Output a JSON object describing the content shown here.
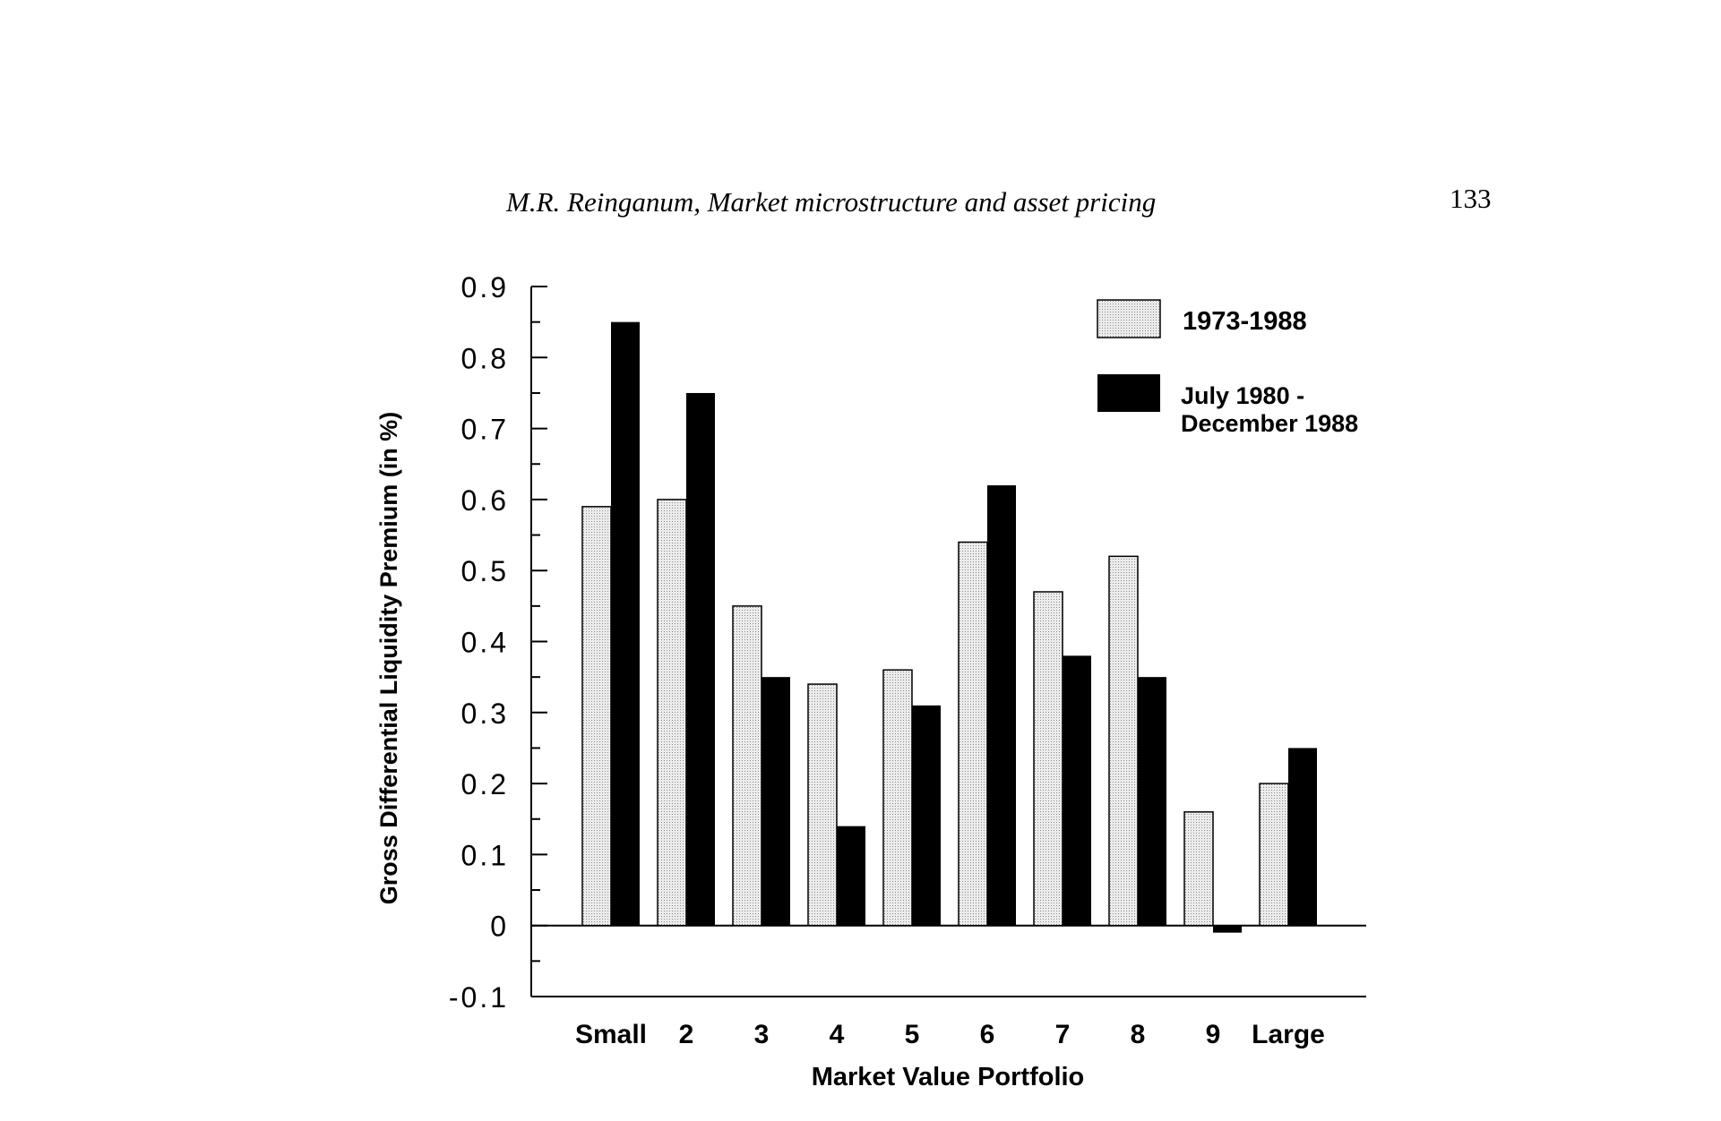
{
  "page": {
    "running_title": "M.R. Reinganum, Market microstructure and asset pricing",
    "page_number": "133"
  },
  "colors": {
    "series_1": "#d9d9d9",
    "series_2": "#000000"
  },
  "chart_data": {
    "type": "bar",
    "title": "",
    "xlabel": "Market Value Portfolio",
    "ylabel": "Gross Differential Liquidity Premium (in %)",
    "ylim": [
      -0.1,
      0.9
    ],
    "yticks": [
      "-0.1",
      "0",
      "0.1",
      "0.2",
      "0.3",
      "0.4",
      "0.5",
      "0.6",
      "0.7",
      "0.8",
      "0.9"
    ],
    "categories": [
      "Small",
      "2",
      "3",
      "4",
      "5",
      "6",
      "7",
      "8",
      "9",
      "Large"
    ],
    "legend_position": "top-right",
    "series": [
      {
        "name": "1973-1988",
        "values": [
          0.59,
          0.6,
          0.45,
          0.34,
          0.36,
          0.54,
          0.47,
          0.52,
          0.16,
          0.2
        ]
      },
      {
        "name": "July 1980 - December 1988",
        "legend_lines": [
          "July 1980 -",
          "December 1988"
        ],
        "values": [
          0.85,
          0.75,
          0.35,
          0.14,
          0.31,
          0.62,
          0.38,
          0.35,
          -0.01,
          0.25
        ]
      }
    ]
  }
}
